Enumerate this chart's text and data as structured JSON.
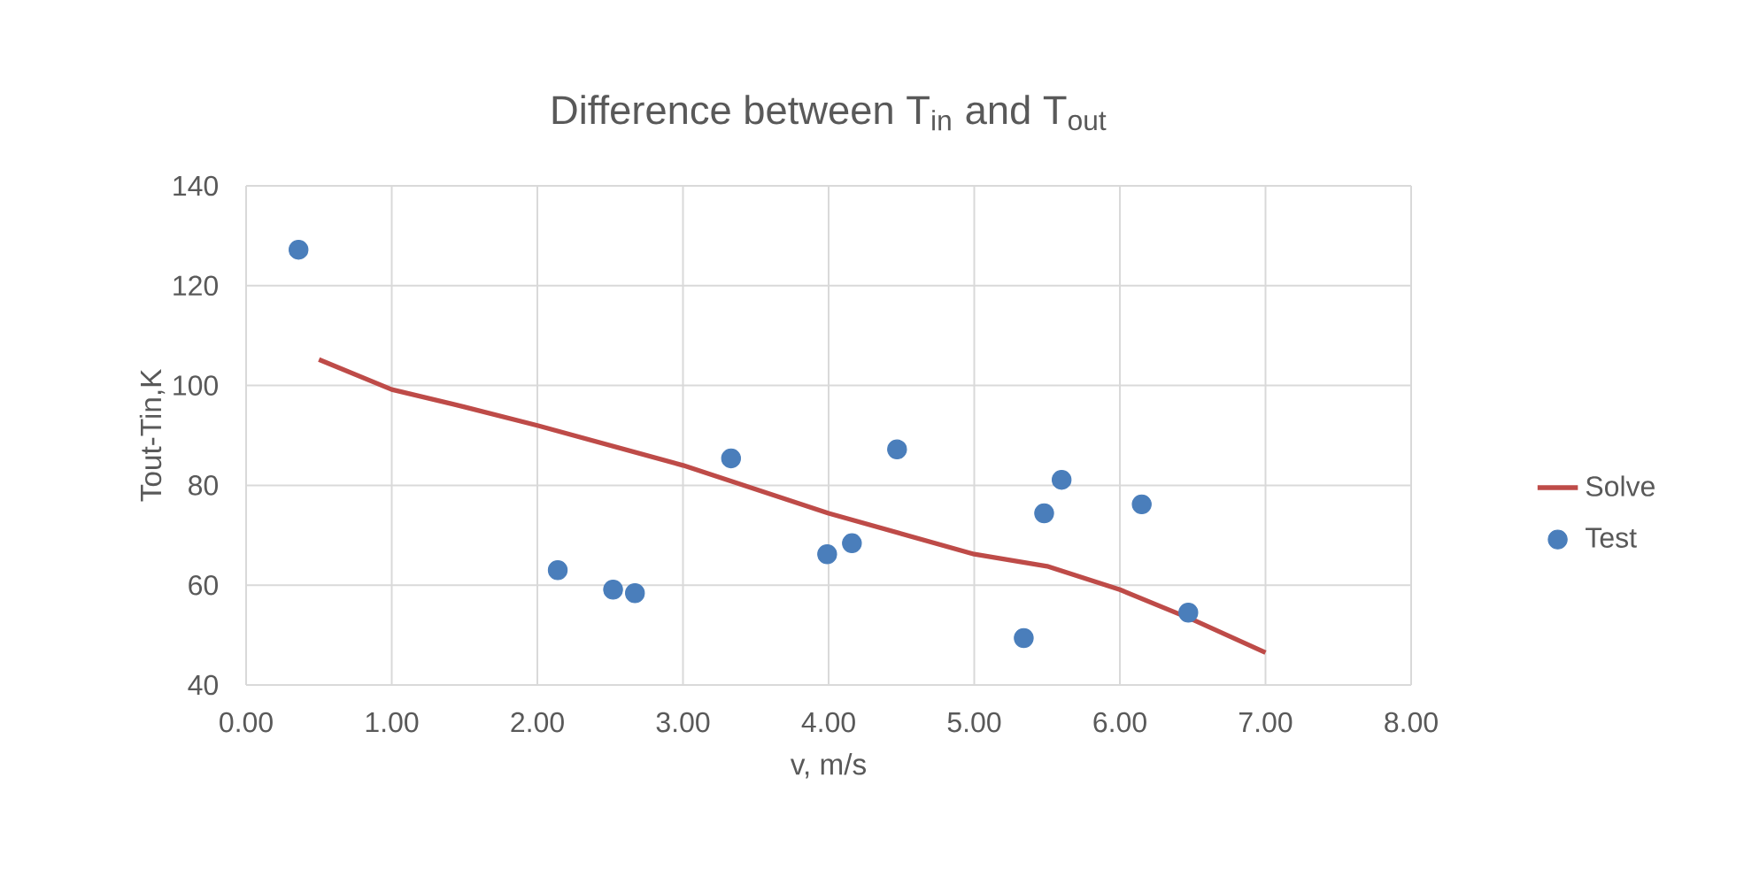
{
  "chart_data": {
    "type": "scatter",
    "title": "Difference between T$_{in}$ and T$_{out}$",
    "xlabel": "v, m/s",
    "ylabel": "Tout-Tin,K",
    "xlim": [
      0,
      8
    ],
    "ylim": [
      40,
      140
    ],
    "xticks": [
      {
        "value": 0,
        "label": "0.00"
      },
      {
        "value": 1,
        "label": "1.00"
      },
      {
        "value": 2,
        "label": "2.00"
      },
      {
        "value": 3,
        "label": "3.00"
      },
      {
        "value": 4,
        "label": "4.00"
      },
      {
        "value": 5,
        "label": "5.00"
      },
      {
        "value": 6,
        "label": "6.00"
      },
      {
        "value": 7,
        "label": "7.00"
      },
      {
        "value": 8,
        "label": "8.00"
      }
    ],
    "yticks": [
      40,
      60,
      80,
      100,
      120,
      140
    ],
    "grid": true,
    "legend": "right",
    "series": [
      {
        "name": "Solve",
        "type": "line",
        "marker": "none",
        "line_style": "solid",
        "color": "#be4b48",
        "x": [
          0.5,
          1.0,
          1.5,
          2.0,
          3.0,
          4.0,
          5.0,
          5.5,
          6.0,
          6.5,
          7.0
        ],
        "values": [
          105.2,
          99.2,
          95.7,
          92.0,
          84.0,
          74.4,
          66.2,
          63.8,
          59.1,
          53.1,
          46.5
        ]
      },
      {
        "name": "Test",
        "marker": "circle",
        "color": "#4a7ebb",
        "x": [
          0.36,
          2.14,
          2.52,
          2.67,
          3.33,
          3.99,
          4.16,
          4.47,
          5.34,
          5.48,
          5.6,
          6.15,
          6.47
        ],
        "values": [
          127.2,
          63.0,
          59.1,
          58.4,
          85.4,
          66.2,
          68.4,
          87.2,
          49.4,
          74.4,
          81.1,
          76.2,
          54.5
        ]
      }
    ]
  }
}
